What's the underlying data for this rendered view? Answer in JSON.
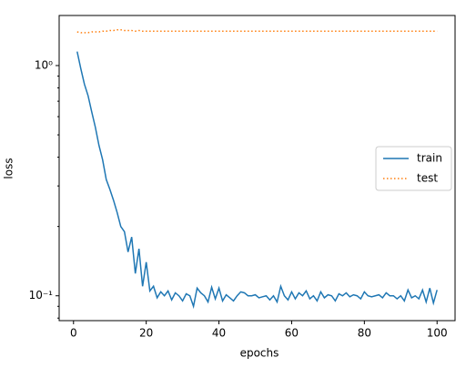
{
  "chart_data": {
    "type": "line",
    "xlabel": "epochs",
    "ylabel": "loss",
    "x": [
      1,
      2,
      3,
      4,
      5,
      6,
      7,
      8,
      9,
      10,
      11,
      12,
      13,
      14,
      15,
      16,
      17,
      18,
      19,
      20,
      21,
      22,
      23,
      24,
      25,
      26,
      27,
      28,
      29,
      30,
      31,
      32,
      33,
      34,
      35,
      36,
      37,
      38,
      39,
      40,
      41,
      42,
      43,
      44,
      45,
      46,
      47,
      48,
      49,
      50,
      51,
      52,
      53,
      54,
      55,
      56,
      57,
      58,
      59,
      60,
      61,
      62,
      63,
      64,
      65,
      66,
      67,
      68,
      69,
      70,
      71,
      72,
      73,
      74,
      75,
      76,
      77,
      78,
      79,
      80,
      81,
      82,
      83,
      84,
      85,
      86,
      87,
      88,
      89,
      90,
      91,
      92,
      93,
      94,
      95,
      96,
      97,
      98,
      99,
      100
    ],
    "series": [
      {
        "name": "train",
        "color": "#1f77b4",
        "style": "solid",
        "values": [
          1.15,
          0.97,
          0.83,
          0.74,
          0.63,
          0.54,
          0.45,
          0.39,
          0.32,
          0.29,
          0.26,
          0.23,
          0.2,
          0.19,
          0.155,
          0.18,
          0.125,
          0.16,
          0.11,
          0.14,
          0.105,
          0.11,
          0.098,
          0.104,
          0.1,
          0.105,
          0.096,
          0.103,
          0.1,
          0.095,
          0.102,
          0.1,
          0.09,
          0.108,
          0.103,
          0.1,
          0.094,
          0.109,
          0.097,
          0.108,
          0.095,
          0.101,
          0.098,
          0.095,
          0.1,
          0.104,
          0.103,
          0.1,
          0.1,
          0.101,
          0.098,
          0.099,
          0.1,
          0.096,
          0.1,
          0.094,
          0.11,
          0.1,
          0.096,
          0.104,
          0.097,
          0.103,
          0.1,
          0.105,
          0.097,
          0.1,
          0.095,
          0.104,
          0.098,
          0.101,
          0.1,
          0.095,
          0.102,
          0.1,
          0.103,
          0.099,
          0.101,
          0.1,
          0.097,
          0.104,
          0.1,
          0.099,
          0.1,
          0.101,
          0.098,
          0.103,
          0.1,
          0.1,
          0.097,
          0.1,
          0.095,
          0.106,
          0.098,
          0.1,
          0.097,
          0.106,
          0.094,
          0.108,
          0.093,
          0.106
        ]
      },
      {
        "name": "test",
        "color": "#ff7f0e",
        "style": "dotted",
        "values": [
          1.4,
          1.39,
          1.39,
          1.39,
          1.4,
          1.4,
          1.4,
          1.41,
          1.41,
          1.42,
          1.42,
          1.43,
          1.43,
          1.42,
          1.42,
          1.42,
          1.41,
          1.42,
          1.41,
          1.41,
          1.41,
          1.41,
          1.41,
          1.41,
          1.41,
          1.41,
          1.41,
          1.41,
          1.41,
          1.41,
          1.41,
          1.41,
          1.41,
          1.41,
          1.41,
          1.41,
          1.41,
          1.41,
          1.41,
          1.41,
          1.41,
          1.41,
          1.41,
          1.41,
          1.41,
          1.41,
          1.41,
          1.41,
          1.41,
          1.41,
          1.41,
          1.41,
          1.41,
          1.41,
          1.41,
          1.41,
          1.41,
          1.41,
          1.41,
          1.41,
          1.41,
          1.41,
          1.41,
          1.41,
          1.41,
          1.41,
          1.41,
          1.41,
          1.41,
          1.41,
          1.41,
          1.41,
          1.41,
          1.41,
          1.41,
          1.41,
          1.41,
          1.41,
          1.41,
          1.41,
          1.41,
          1.41,
          1.41,
          1.41,
          1.41,
          1.41,
          1.41,
          1.41,
          1.41,
          1.41,
          1.41,
          1.41,
          1.41,
          1.41,
          1.41,
          1.41,
          1.41,
          1.41,
          1.41,
          1.41
        ]
      }
    ],
    "xlim": [
      -3.95,
      104.95
    ],
    "xticks": [
      0,
      20,
      40,
      60,
      80,
      100
    ],
    "ylim": [
      0.078,
      1.65
    ],
    "yscale": "log",
    "yticks": [
      {
        "value": 0.1,
        "label": "10⁻¹"
      },
      {
        "value": 1,
        "label": "10⁰"
      }
    ],
    "yminorticks": [
      0.08,
      0.09,
      0.2,
      0.3,
      0.4,
      0.5,
      0.6,
      0.7,
      0.8,
      0.9
    ],
    "legend": "center right"
  }
}
